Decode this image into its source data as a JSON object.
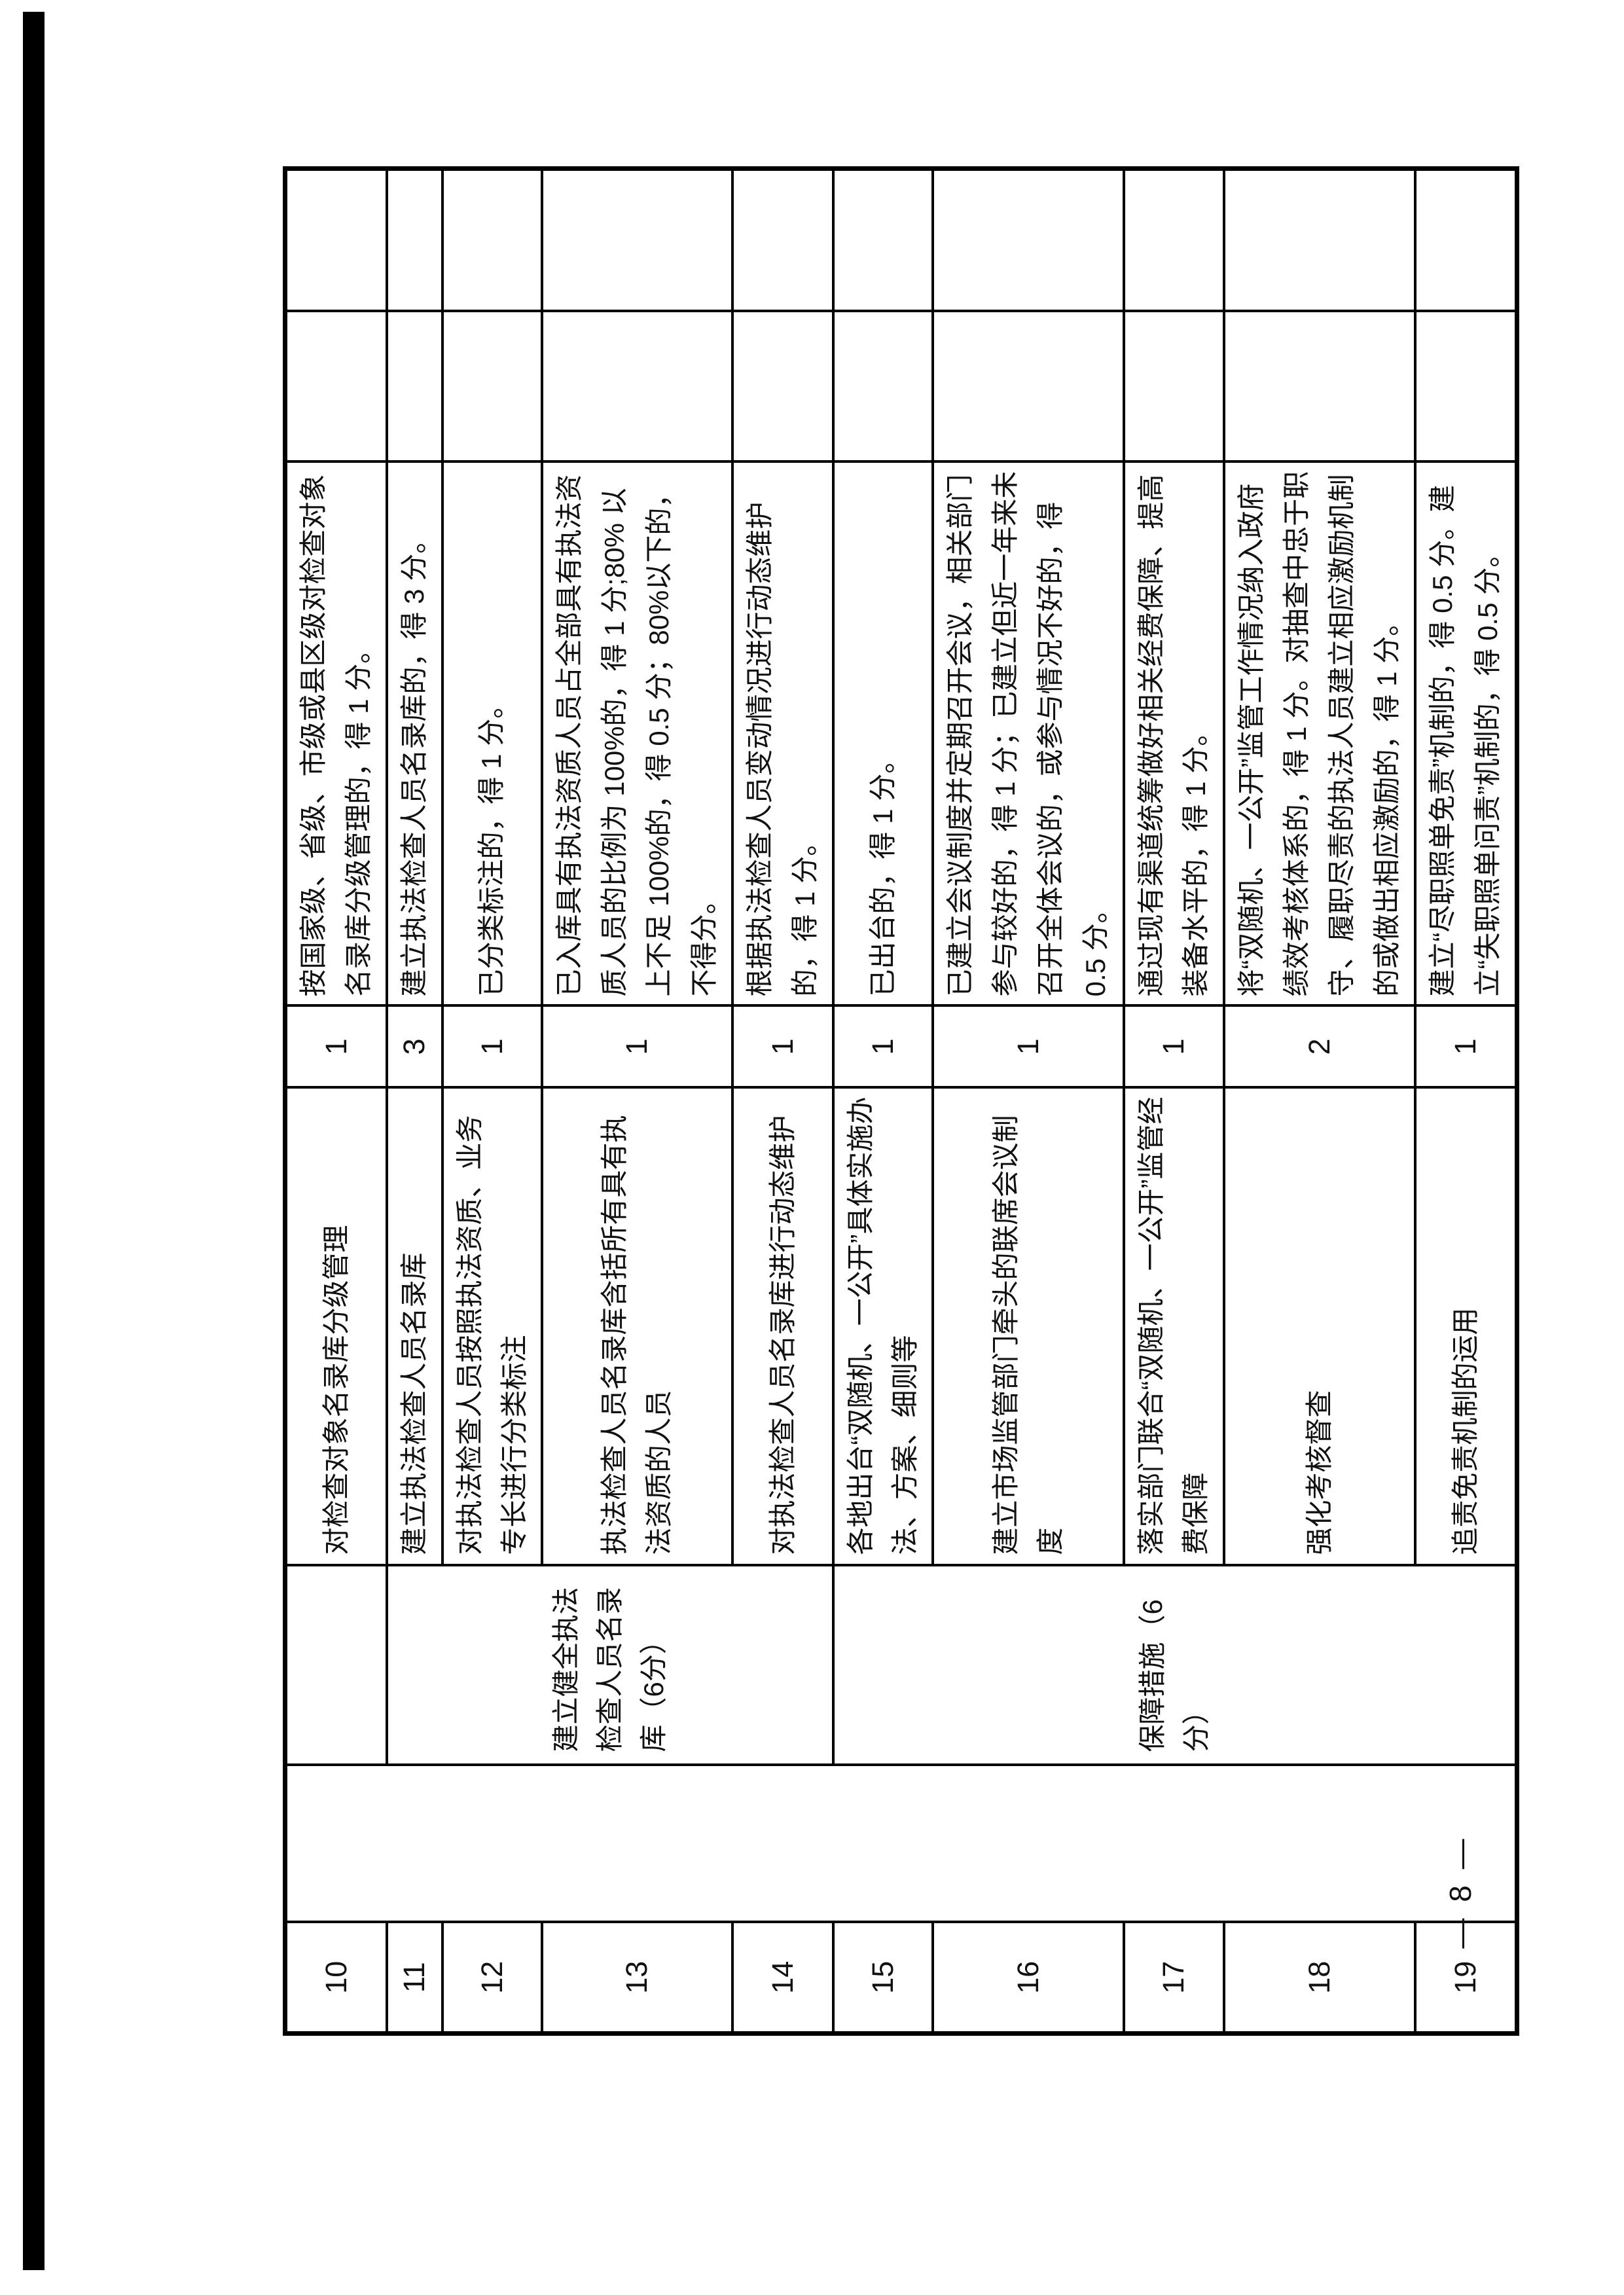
{
  "page": {
    "page_number": "— 8 —"
  },
  "table": {
    "rows": [
      {
        "num": "10",
        "category": "",
        "criteria": "对检查对象名录库分级管理",
        "points": "1",
        "standard": "按国家级、省级、市级或县区级对检查对象名录库分级管理的，得 1 分。"
      },
      {
        "num": "11",
        "category": "建立健全执法检查人员名录库（6分）",
        "criteria": "建立执法检查人员名录库",
        "points": "3",
        "standard": "建立执法检查人员名录库的，得 3 分。"
      },
      {
        "num": "12",
        "criteria": "对执法检查人员按照执法资质、业务专长进行分类标注",
        "points": "1",
        "standard": "已分类标注的，得 1 分。"
      },
      {
        "num": "13",
        "criteria": "执法检查人员名录库含括所有具有执法资质的人员",
        "points": "1",
        "standard": "已入库具有执法资质人员占全部具有执法资质人员的比例为 100%的，得 1 分;80% 以上不足 100%的，得 0.5 分；80%以下的，不得分。"
      },
      {
        "num": "14",
        "criteria": "对执法检查人员名录库进行动态维护",
        "points": "1",
        "standard": "根据执法检查人员变动情况进行动态维护的，得 1 分。"
      },
      {
        "num": "15",
        "category": "保障措施（6分）",
        "criteria": "各地出台“双随机、一公开”具体实施办法、方案、细则等",
        "points": "1",
        "standard": "已出台的，得 1 分。"
      },
      {
        "num": "16",
        "criteria": "建立市场监管部门牵头的联席会议制度",
        "points": "1",
        "standard": "已建立会议制度并定期召开会议，相关部门参与较好的，得 1 分；已建立但近一年来未召开全体会议的，或参与情况不好的，得 0.5 分。"
      },
      {
        "num": "17",
        "criteria": "落实部门联合“双随机、一公开”监管经费保障",
        "points": "1",
        "standard": "通过现有渠道统筹做好相关经费保障、提高装备水平的，得 1 分。"
      },
      {
        "num": "18",
        "criteria": "强化考核督查",
        "points": "2",
        "standard": "将“双随机、一公开”监管工作情况纳入政府绩效考核体系的，得 1 分。对抽查中忠于职守、履职尽责的执法人员建立相应激励机制的或做出相应激励的，得 1 分。"
      },
      {
        "num": "19",
        "criteria": "追责免责机制的运用",
        "points": "1",
        "standard": "建立“尽职照单免责”机制的，得 0.5 分。建立“失职照单问责”机制的，得 0.5 分。"
      }
    ]
  }
}
